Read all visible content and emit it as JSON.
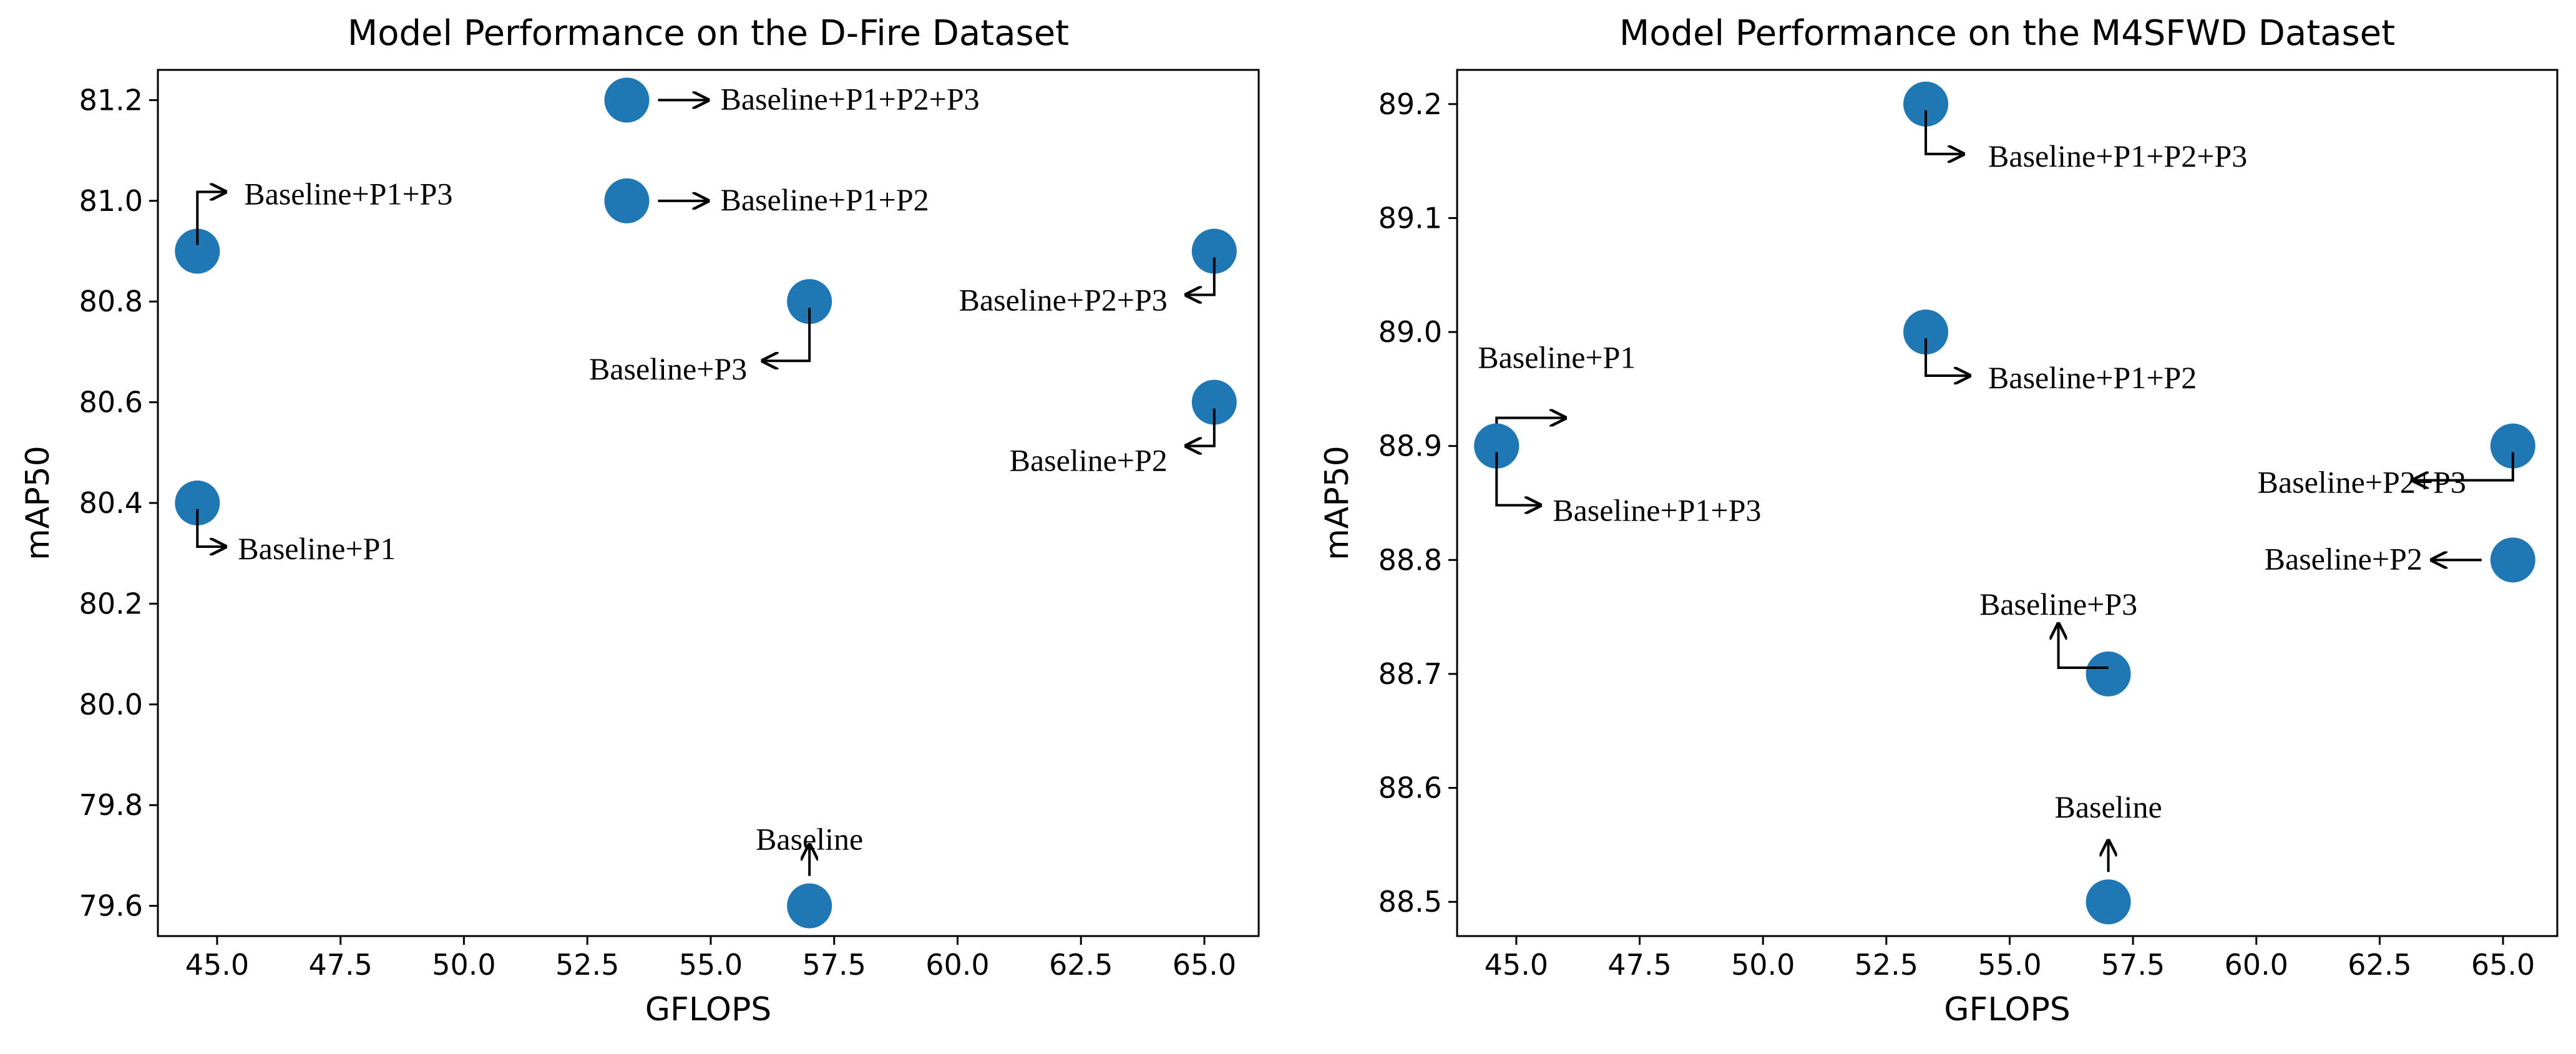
{
  "chart_data": [
    {
      "type": "scatter",
      "title": "Model Performance on the D-Fire Dataset",
      "xlabel": "GFLOPS",
      "ylabel": "mAP50",
      "xlim": [
        43.8,
        66.1
      ],
      "ylim": [
        79.54,
        81.26
      ],
      "xticks": [
        45.0,
        47.5,
        50.0,
        52.5,
        55.0,
        57.5,
        60.0,
        62.5,
        65.0
      ],
      "xtick_labels": [
        "45.0",
        "47.5",
        "50.0",
        "52.5",
        "55.0",
        "57.5",
        "60.0",
        "62.5",
        "65.0"
      ],
      "yticks": [
        79.6,
        79.8,
        80.0,
        80.2,
        80.4,
        80.6,
        80.8,
        81.0,
        81.2
      ],
      "ytick_labels": [
        "79.6",
        "79.8",
        "80.0",
        "80.2",
        "80.4",
        "80.6",
        "80.8",
        "81.0",
        "81.2"
      ],
      "color": "#1f77b4",
      "points": [
        {
          "label": "Baseline",
          "x": 57.0,
          "y": 79.6
        },
        {
          "label": "Baseline+P1",
          "x": 44.6,
          "y": 80.4
        },
        {
          "label": "Baseline+P2",
          "x": 65.2,
          "y": 80.6
        },
        {
          "label": "Baseline+P3",
          "x": 57.0,
          "y": 80.8
        },
        {
          "label": "Baseline+P1+P2",
          "x": 53.3,
          "y": 81.0
        },
        {
          "label": "Baseline+P1+P3",
          "x": 44.6,
          "y": 80.9
        },
        {
          "label": "Baseline+P2+P3",
          "x": 65.2,
          "y": 80.9
        },
        {
          "label": "Baseline+P1+P2+P3",
          "x": 53.3,
          "y": 81.2
        }
      ]
    },
    {
      "type": "scatter",
      "title": "Model Performance on the M4SFWD Dataset",
      "xlabel": "GFLOPS",
      "ylabel": "mAP50",
      "xlim": [
        43.8,
        66.1
      ],
      "ylim": [
        88.47,
        89.23
      ],
      "xticks": [
        45.0,
        47.5,
        50.0,
        52.5,
        55.0,
        57.5,
        60.0,
        62.5,
        65.0
      ],
      "xtick_labels": [
        "45.0",
        "47.5",
        "50.0",
        "52.5",
        "55.0",
        "57.5",
        "60.0",
        "62.5",
        "65.0"
      ],
      "yticks": [
        88.5,
        88.6,
        88.7,
        88.8,
        88.9,
        89.0,
        89.1,
        89.2
      ],
      "ytick_labels": [
        "88.5",
        "88.6",
        "88.7",
        "88.8",
        "88.9",
        "89.0",
        "89.1",
        "89.2"
      ],
      "color": "#1f77b4",
      "points": [
        {
          "label": "Baseline",
          "x": 57.0,
          "y": 88.5
        },
        {
          "label": "Baseline+P1",
          "x": 44.6,
          "y": 88.9
        },
        {
          "label": "Baseline+P2",
          "x": 65.2,
          "y": 88.8
        },
        {
          "label": "Baseline+P3",
          "x": 57.0,
          "y": 88.7
        },
        {
          "label": "Baseline+P1+P2",
          "x": 53.3,
          "y": 89.0
        },
        {
          "label": "Baseline+P1+P3",
          "x": 44.6,
          "y": 88.9
        },
        {
          "label": "Baseline+P2+P3",
          "x": 65.2,
          "y": 88.9
        },
        {
          "label": "Baseline+P1+P2+P3",
          "x": 53.3,
          "y": 89.2
        }
      ]
    }
  ]
}
